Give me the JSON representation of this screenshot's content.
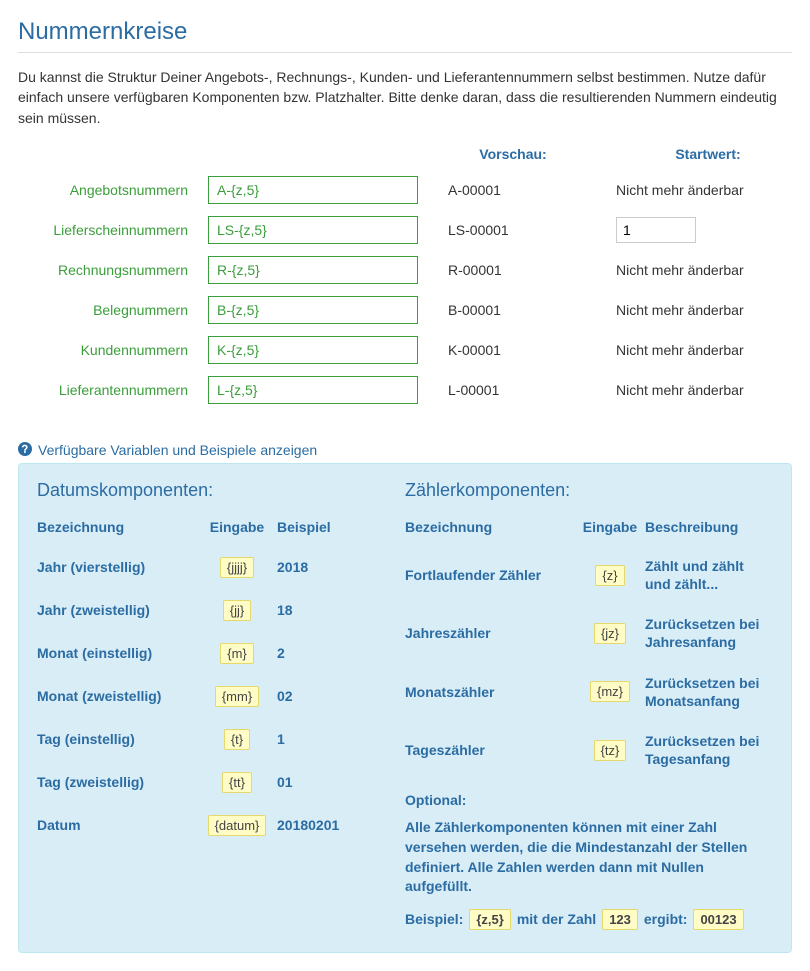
{
  "title": "Nummernkreise",
  "intro": "Du kannst die Struktur Deiner Angebots-, Rechnungs-, Kunden- und Lieferantennummern selbst bestimmen. Nutze dafür einfach unsere verfügbaren Komponenten bzw. Platzhalter. Bitte denke daran, dass die resultierenden Nummern eindeutig sein müssen.",
  "headers": {
    "preview": "Vorschau:",
    "startvalue": "Startwert:"
  },
  "not_editable": "Nicht mehr änderbar",
  "rows": [
    {
      "label": "Angebotsnummern",
      "pattern": "A-{z,5}",
      "preview": "A-00001",
      "editable": false
    },
    {
      "label": "Lieferscheinnummern",
      "pattern": "LS-{z,5}",
      "preview": "LS-00001",
      "editable": true,
      "startvalue": "1"
    },
    {
      "label": "Rechnungsnummern",
      "pattern": "R-{z,5}",
      "preview": "R-00001",
      "editable": false
    },
    {
      "label": "Belegnummern",
      "pattern": "B-{z,5}",
      "preview": "B-00001",
      "editable": false
    },
    {
      "label": "Kundennummern",
      "pattern": "K-{z,5}",
      "preview": "K-00001",
      "editable": false
    },
    {
      "label": "Lieferantennummern",
      "pattern": "L-{z,5}",
      "preview": "L-00001",
      "editable": false
    }
  ],
  "toggle_text": "Verfügbare Variablen und Beispiele anzeigen",
  "help": {
    "date": {
      "title": "Datumskomponenten:",
      "cols": [
        "Bezeichnung",
        "Eingabe",
        "Beispiel"
      ],
      "items": [
        {
          "name": "Jahr (vierstellig)",
          "code": "{jjjj}",
          "example": "2018"
        },
        {
          "name": "Jahr (zweistellig)",
          "code": "{jj}",
          "example": "18"
        },
        {
          "name": "Monat (einstellig)",
          "code": "{m}",
          "example": "2"
        },
        {
          "name": "Monat (zweistellig)",
          "code": "{mm}",
          "example": "02"
        },
        {
          "name": "Tag (einstellig)",
          "code": "{t}",
          "example": "1"
        },
        {
          "name": "Tag (zweistellig)",
          "code": "{tt}",
          "example": "01"
        },
        {
          "name": "Datum",
          "code": "{datum}",
          "example": "20180201"
        }
      ]
    },
    "counter": {
      "title": "Zählerkomponenten:",
      "cols": [
        "Bezeichnung",
        "Eingabe",
        "Beschreibung"
      ],
      "items": [
        {
          "name": "Fortlaufender Zähler",
          "code": "{z}",
          "desc": "Zählt und zählt und zählt..."
        },
        {
          "name": "Jahreszähler",
          "code": "{jz}",
          "desc": "Zurücksetzen bei Jahresanfang"
        },
        {
          "name": "Monatszähler",
          "code": "{mz}",
          "desc": "Zurücksetzen bei Monatsanfang"
        },
        {
          "name": "Tageszähler",
          "code": "{tz}",
          "desc": "Zurücksetzen bei Tagesanfang"
        }
      ],
      "optional": {
        "title": "Optional:",
        "text": "Alle Zählerkomponenten können mit einer Zahl versehen werden, die die Mindestanzahl der Stellen definiert. Alle Zahlen werden dann mit Nullen aufgefüllt.",
        "example_label": "Beispiel:",
        "example_code1": "{z,5}",
        "example_mid": "mit der Zahl",
        "example_code2": "123",
        "example_suffix": "ergibt:",
        "example_result": "00123"
      }
    }
  }
}
